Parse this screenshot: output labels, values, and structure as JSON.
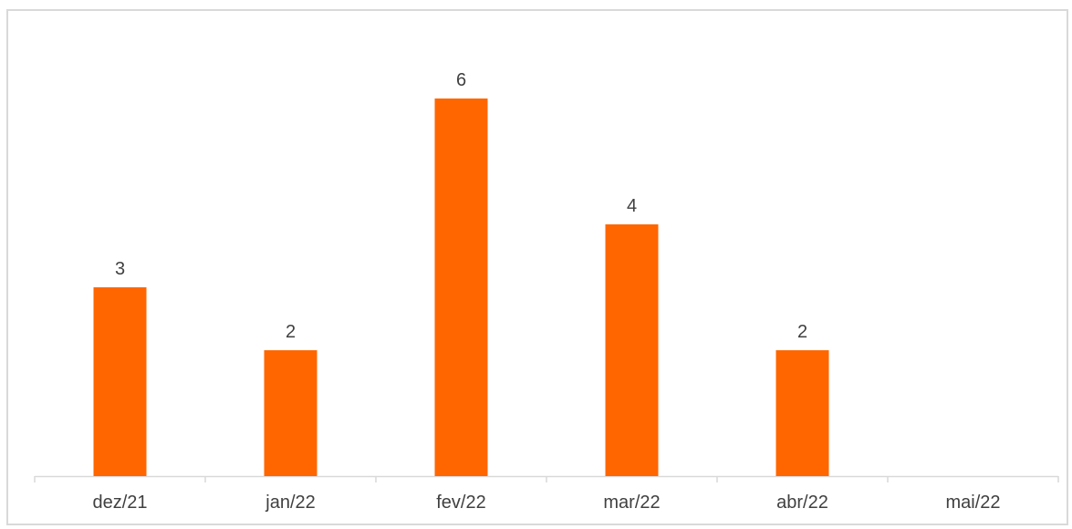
{
  "chart_data": {
    "type": "bar",
    "categories": [
      "dez/21",
      "jan/22",
      "fev/22",
      "mar/22",
      "abr/22",
      "mai/22"
    ],
    "values": [
      3,
      2,
      6,
      4,
      2,
      null
    ],
    "data_labels": [
      "3",
      "2",
      "6",
      "4",
      "2",
      ""
    ],
    "ylim": [
      0,
      7
    ],
    "title": "",
    "xlabel": "",
    "ylabel": "",
    "grid": false,
    "legend": "none",
    "bar_color": "#ff6600",
    "axis_color": "#d9d9d9",
    "text_color": "#404040"
  }
}
